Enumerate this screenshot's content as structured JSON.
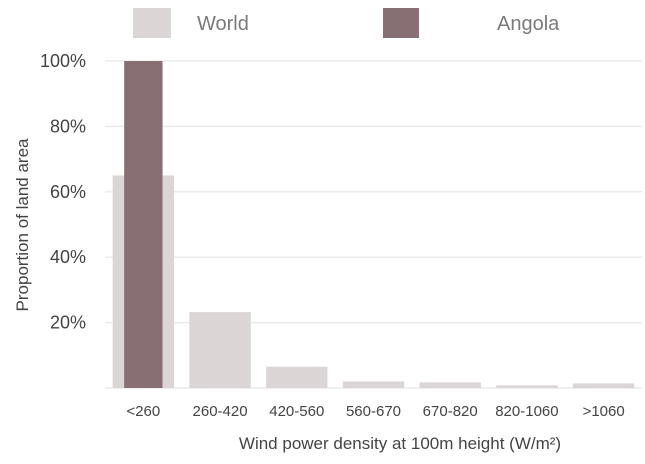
{
  "chart_data": {
    "type": "bar",
    "categories": [
      "<260",
      "260-420",
      "420-560",
      "560-670",
      "670-820",
      "820-1060",
      ">1060"
    ],
    "series": [
      {
        "name": "World",
        "color": "#dcd5d5",
        "values": [
          65,
          23.2,
          6.5,
          2.0,
          1.7,
          0.8,
          1.4
        ]
      },
      {
        "name": "Angola",
        "color": "#876f74",
        "values": [
          100,
          0,
          0,
          0,
          0,
          0,
          0
        ]
      }
    ],
    "xlabel": "Wind power density at 100m height (W/m²)",
    "ylabel": "Proportion of land area",
    "ylim": [
      0,
      100
    ],
    "yticks": [
      20,
      40,
      60,
      80,
      100
    ],
    "ytick_labels": [
      "20%",
      "40%",
      "60%",
      "80%",
      "100%"
    ],
    "grid": true,
    "legend_position": "top"
  }
}
